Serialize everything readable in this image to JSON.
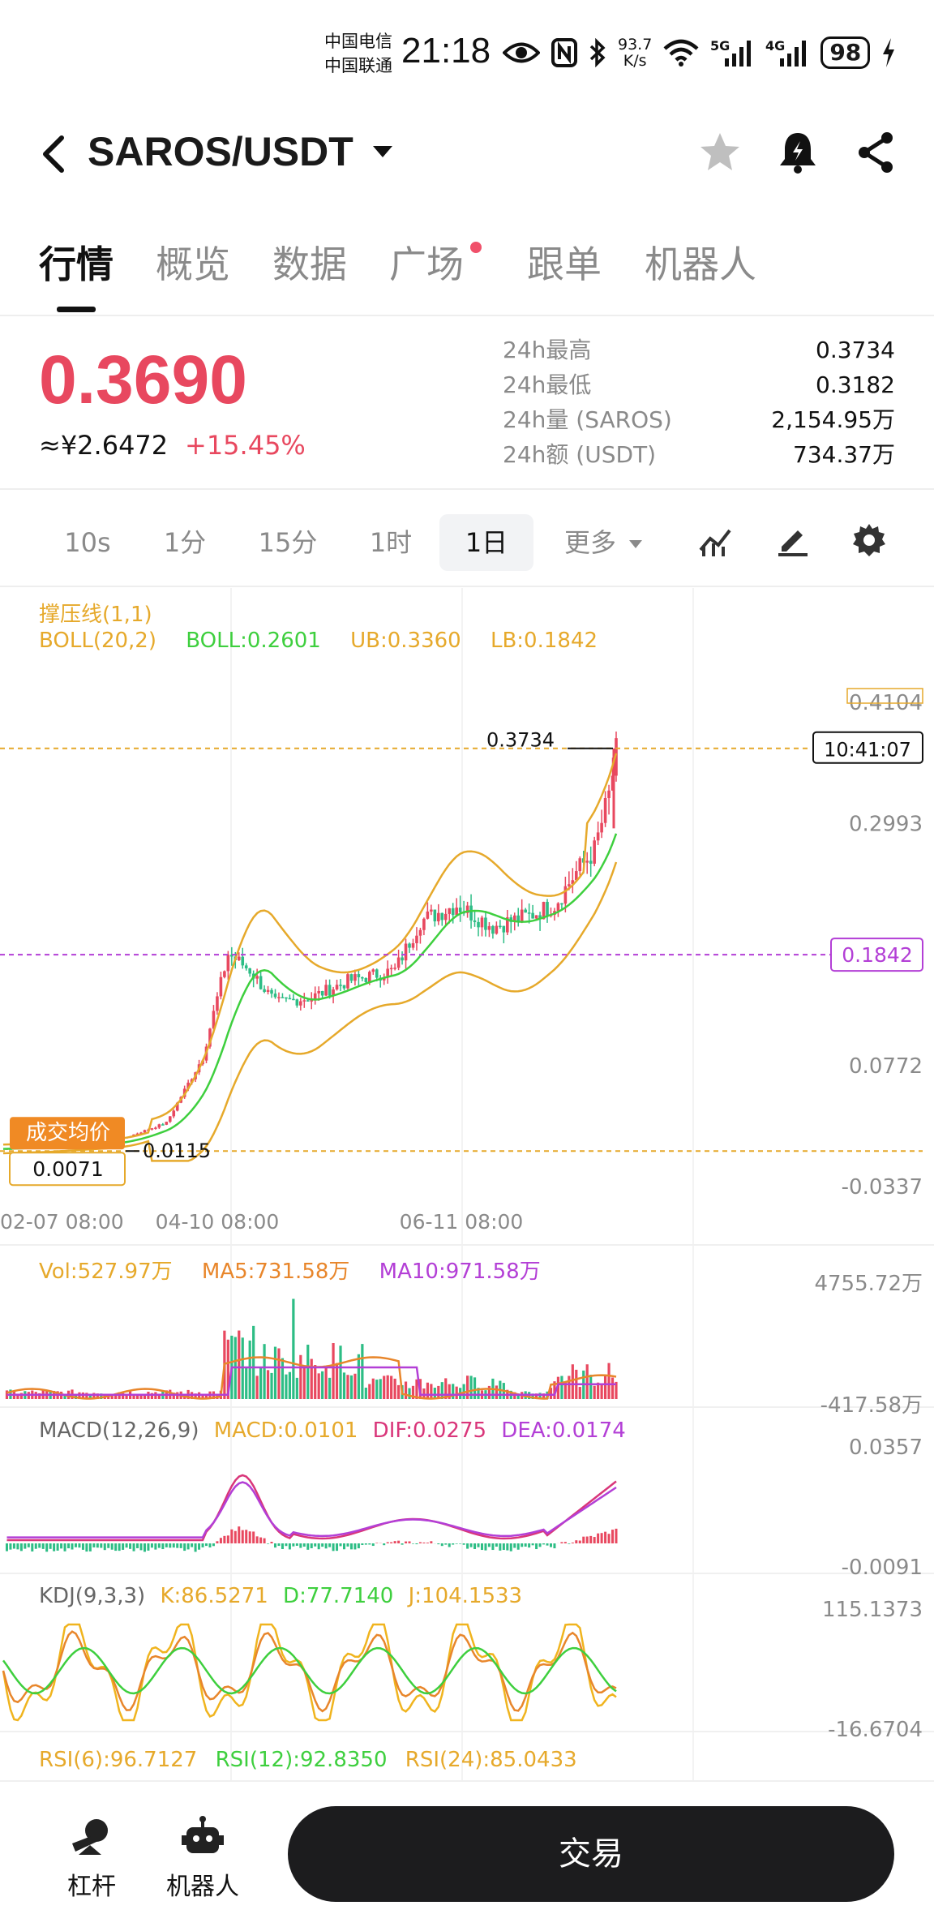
{
  "status_bar": {
    "carrier_1": "中国电信",
    "carrier_2": "中国联通",
    "time": "21:18",
    "net_speed_value": "93.7",
    "net_speed_unit": "K/s",
    "signal_1": "5G",
    "signal_2": "4G",
    "battery": "98"
  },
  "header": {
    "title": "SAROS/USDT"
  },
  "tabs": [
    {
      "label": "行情",
      "active": true
    },
    {
      "label": "概览"
    },
    {
      "label": "数据"
    },
    {
      "label": "广场",
      "dot": true
    },
    {
      "label": "跟单"
    },
    {
      "label": "机器人"
    }
  ],
  "price": {
    "last": "0.3690",
    "cny": "≈¥2.6472",
    "change": "+15.45%"
  },
  "stats": [
    {
      "label": "24h最高",
      "value": "0.3734"
    },
    {
      "label": "24h最低",
      "value": "0.3182"
    },
    {
      "label": "24h量 (SAROS)",
      "value": "2,154.95万"
    },
    {
      "label": "24h额 (USDT)",
      "value": "734.37万"
    }
  ],
  "intervals": [
    {
      "label": "10s"
    },
    {
      "label": "1分"
    },
    {
      "label": "15分"
    },
    {
      "label": "1时"
    },
    {
      "label": "1日",
      "active": true
    },
    {
      "label": "更多"
    }
  ],
  "colors": {
    "up": "#e8485f",
    "down": "#2dbd85",
    "boll_mid": "#3ecf3e",
    "boll_band": "#e6a92b",
    "ma10": "#b33fd6",
    "purple_line": "#b33fd6"
  },
  "main_chart": {
    "legend_1": "撑压线(1,1)",
    "legend_boll": "BOLL(20,2)",
    "legend_boll_mid": "BOLL:0.2601",
    "legend_ub": "UB:0.3360",
    "legend_lb": "LB:0.1842",
    "y_labels": [
      "0.4104",
      "0.2993",
      "0.0772",
      "-0.0337"
    ],
    "high_label": "0.3734",
    "low_label": "0.0115",
    "time_tag": "10:41:07",
    "lb_tag": "0.1842",
    "avg_price_label": "成交均价",
    "avg_price_value": "0.0071",
    "x_labels": [
      "02-07 08:00",
      "04-10 08:00",
      "06-11 08:00"
    ]
  },
  "volume": {
    "vol": "Vol:527.97万",
    "ma5": "MA5:731.58万",
    "ma10": "MA10:971.58万",
    "y_top": "4755.72万",
    "y_bottom": "-417.58万"
  },
  "macd": {
    "title": "MACD(12,26,9)",
    "macd": "MACD:0.0101",
    "dif": "DIF:0.0275",
    "dea": "DEA:0.0174",
    "y_top": "0.0357",
    "y_bottom": "-0.0091"
  },
  "kdj": {
    "title": "KDJ(9,3,3)",
    "k": "K:86.5271",
    "d": "D:77.7140",
    "j": "J:104.1533",
    "y_top": "115.1373",
    "y_bottom": "-16.6704"
  },
  "rsi": {
    "rsi6": "RSI(6):96.7127",
    "rsi12": "RSI(12):92.8350",
    "rsi24": "RSI(24):85.0433"
  },
  "bottom_bar": {
    "leverage": "杠杆",
    "robot": "机器人",
    "trade": "交易"
  }
}
